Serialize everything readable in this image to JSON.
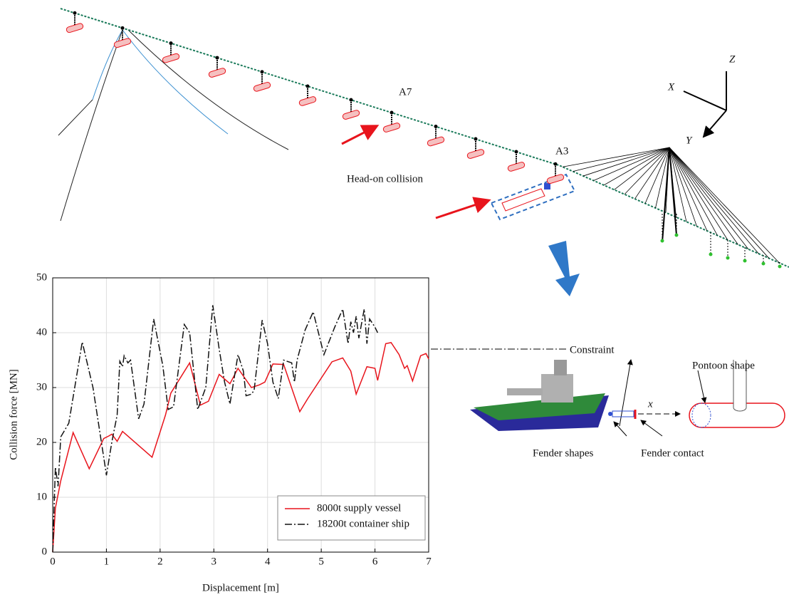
{
  "chart_data": {
    "type": "line",
    "x_label": "Displacement [m]",
    "y_label": "Collision force [MN]",
    "xlim": [
      0,
      7
    ],
    "ylim": [
      0,
      50
    ],
    "xticks": [
      0,
      1,
      2,
      3,
      4,
      5,
      6,
      7
    ],
    "yticks": [
      0,
      10,
      20,
      30,
      40,
      50
    ],
    "grid": true,
    "legend": "lower right",
    "series": [
      {
        "name": "8000t supply vessel",
        "color": "#e8141c",
        "style": "solid",
        "x": [
          0,
          0.05,
          0.15,
          0.38,
          0.68,
          0.95,
          1.05,
          1.1,
          1.2,
          1.3,
          1.85,
          2.1,
          2.2,
          2.55,
          2.75,
          2.9,
          3.1,
          3.3,
          3.45,
          3.7,
          3.85,
          3.95,
          4.1,
          4.3,
          4.6,
          4.75,
          5.2,
          5.4,
          5.55,
          5.65,
          5.85,
          6.0,
          6.05,
          6.2,
          6.3,
          6.45,
          6.55,
          6.6,
          6.7,
          6.85,
          6.95,
          7.0
        ],
        "values": [
          0,
          8,
          13,
          21.8,
          15.2,
          20.7,
          21.2,
          21.5,
          20.2,
          22,
          17.3,
          25,
          29,
          34.5,
          26.8,
          27.5,
          32.4,
          30.7,
          33.5,
          30,
          30.5,
          31,
          34.3,
          34.2,
          25.6,
          28,
          34.7,
          35.4,
          33,
          28.8,
          33.8,
          33.5,
          31.3,
          38,
          38.2,
          36,
          33.5,
          34,
          31.2,
          35.8,
          36.2,
          35.2
        ]
      },
      {
        "name": "18200t container ship",
        "color": "#111111",
        "style": "dashdot",
        "x": [
          0,
          0.05,
          0.1,
          0.15,
          0.3,
          0.55,
          0.75,
          0.97,
          1.0,
          1.1,
          1.2,
          1.25,
          1.3,
          1.33,
          1.4,
          1.45,
          1.6,
          1.7,
          1.88,
          2.05,
          2.15,
          2.25,
          2.45,
          2.55,
          2.7,
          2.85,
          2.98,
          3.1,
          3.2,
          3.3,
          3.45,
          3.55,
          3.6,
          3.7,
          3.75,
          3.9,
          4.0,
          4.1,
          4.2,
          4.3,
          4.45,
          4.5,
          4.55,
          4.7,
          4.85,
          5.05,
          5.25,
          5.4,
          5.5,
          5.55,
          5.6,
          5.65,
          5.7,
          5.8,
          5.85,
          5.9,
          6.0,
          6.05
        ],
        "values": [
          0,
          15.5,
          12,
          21,
          23.5,
          38.3,
          30,
          16,
          14,
          20,
          25,
          34.8,
          33.8,
          35.8,
          34.5,
          35,
          24.3,
          27,
          42.5,
          34,
          26,
          26.5,
          41.5,
          40,
          26,
          30,
          45,
          37,
          31,
          27,
          36,
          33,
          28.5,
          28.8,
          29.5,
          42.3,
          38,
          31,
          28,
          35,
          34.5,
          31,
          35,
          40.5,
          43.8,
          36,
          41,
          44.3,
          38,
          42,
          40,
          43,
          39,
          44.3,
          38,
          42.5,
          41,
          40
        ]
      }
    ]
  },
  "diagram": {
    "a7": "A7",
    "a3": "A3",
    "collision": "Head-on collision",
    "axis_x": "X",
    "axis_y": "Y",
    "axis_z": "Z",
    "constraint": "Constraint",
    "pontoon_shape": "Pontoon shape",
    "fender_shapes": "Fender shapes",
    "fender_contact": "Fender contact",
    "local_x": "x"
  }
}
